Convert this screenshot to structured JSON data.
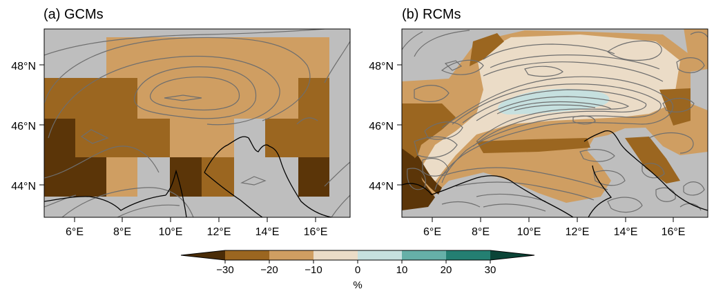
{
  "panels": [
    {
      "title": "(a) GCMs",
      "lat_ticks": [
        "48°N",
        "46°N",
        "44°N"
      ],
      "lon_ticks": [
        "6°E",
        "8°E",
        "10°E",
        "12°E",
        "14°E",
        "16°E"
      ]
    },
    {
      "title": "(b) RCMs",
      "lat_ticks": [
        "48°N",
        "46°N",
        "44°N"
      ],
      "lon_ticks": [
        "6°E",
        "8°E",
        "10°E",
        "12°E",
        "14°E",
        "16°E"
      ]
    }
  ],
  "colorbar": {
    "ticks": [
      "−30",
      "−20",
      "−10",
      "0",
      "10",
      "20",
      "30"
    ],
    "unit": "%",
    "colors": {
      "below": "#4a2c07",
      "bins": [
        "#5b3508",
        "#9b6620",
        "#cf9e62",
        "#ebdcc7",
        "#c6e0df",
        "#66b0a8",
        "#247f72"
      ],
      "above": "#0b4437"
    }
  },
  "map_colors": {
    "missing": "#bebebe",
    "contour": "#6e6e6e",
    "coastline": "#000000"
  }
}
